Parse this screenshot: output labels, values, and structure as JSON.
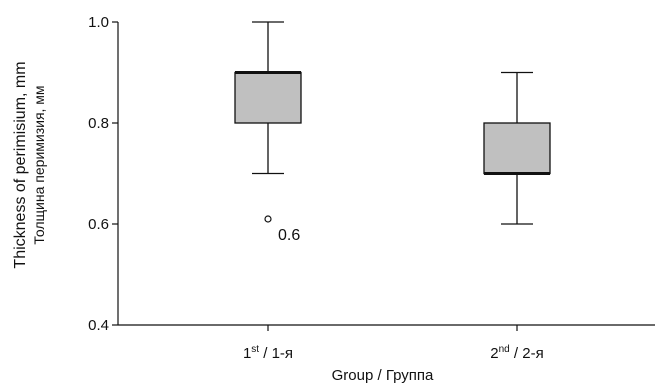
{
  "chart_data": {
    "type": "box",
    "xlabel": "Group / Группа",
    "ylabel_line1": "Thickness of perimisium, mm",
    "ylabel_line2": "Толщина перимизия, мм",
    "ylim": [
      0.4,
      1.0
    ],
    "yticks": [
      0.4,
      0.6,
      0.8,
      1.0
    ],
    "ytick_labels": [
      "0.4",
      "0.6",
      "0.8",
      "1.0"
    ],
    "grid": false,
    "categories": [
      {
        "main": "1",
        "sup": "st",
        "rest": " / 1-я"
      },
      {
        "main": "2",
        "sup": "nd",
        "rest": " / 2-я"
      }
    ],
    "boxes": [
      {
        "whisker_low": 0.7,
        "q1": 0.8,
        "median": 0.9,
        "q3": 0.9,
        "whisker_high": 1.0,
        "outliers": [
          0.6
        ]
      },
      {
        "whisker_low": 0.6,
        "q1": 0.7,
        "median": 0.7,
        "q3": 0.8,
        "whisker_high": 0.9,
        "outliers": []
      }
    ],
    "annotations": [
      {
        "text": "0.6",
        "x_index": 0,
        "y": 0.6
      }
    ],
    "colors": {
      "box_fill": "#c0c0c0",
      "line": "#111111"
    }
  }
}
